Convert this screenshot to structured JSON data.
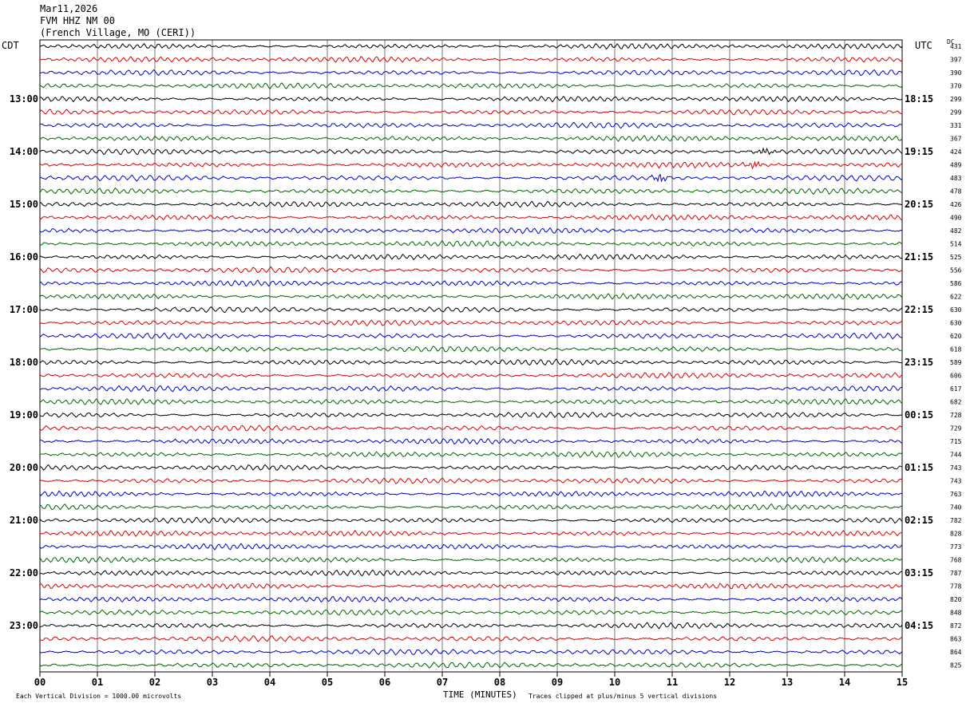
{
  "header": {
    "date": "Mar11,2026",
    "station": "FVM HHZ NM 00",
    "location": "(French Village, MO (CERI))"
  },
  "left_tz": "CDT",
  "right_tz": "UTC",
  "dc_label": "DC",
  "footer": {
    "left": "Each Vertical Division = 1000.00 microvolts",
    "center_title": "TIME (MINUTES)",
    "right": "Traces clipped at plus/minus 5 vertical divisions"
  },
  "chart_data": {
    "type": "line",
    "title": "FVM HHZ NM 00",
    "xlabel": "TIME (MINUTES)",
    "xlim": [
      0,
      15
    ],
    "x_ticks": [
      "00",
      "01",
      "02",
      "03",
      "04",
      "05",
      "06",
      "07",
      "08",
      "09",
      "10",
      "11",
      "12",
      "13",
      "14",
      "15"
    ],
    "left_time_labels": [
      "13:00",
      "14:00",
      "15:00",
      "16:00",
      "17:00",
      "18:00",
      "19:00",
      "20:00",
      "21:00",
      "22:00",
      "23:00"
    ],
    "right_time_labels": [
      "18:15",
      "19:15",
      "20:15",
      "21:15",
      "22:15",
      "23:15",
      "00:15",
      "01:15",
      "02:15",
      "03:15",
      "04:15"
    ],
    "time_label_rows": [
      4,
      8,
      12,
      16,
      20,
      24,
      28,
      32,
      36,
      40,
      44
    ],
    "trace_colors": [
      "#000000",
      "#dd0000",
      "#0000cc",
      "#006600"
    ],
    "trace_count": 48,
    "dc_offsets": [
      "431",
      "397",
      "390",
      "370",
      "299",
      "299",
      "331",
      "367",
      "424",
      "489",
      "483",
      "478",
      "426",
      "490",
      "482",
      "514",
      "525",
      "556",
      "586",
      "622",
      "630",
      "630",
      "620",
      "618",
      "589",
      "606",
      "617",
      "682",
      "728",
      "729",
      "715",
      "744",
      "743",
      "743",
      "763",
      "740",
      "782",
      "828",
      "773",
      "768",
      "787",
      "778",
      "820",
      "848",
      "872",
      "863",
      "864",
      "825"
    ],
    "events": [
      {
        "trace": 8,
        "minute": 12.6
      },
      {
        "trace": 9,
        "minute": 12.45
      },
      {
        "trace": 10,
        "minute": 10.8
      }
    ]
  }
}
